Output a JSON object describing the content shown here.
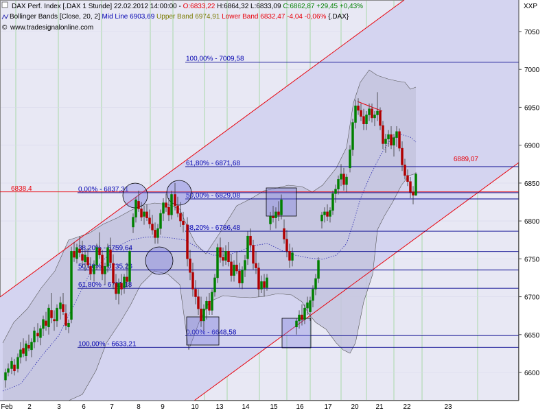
{
  "header": {
    "line1_prefix": "DAX Perf. Index [.DAX  1 Stunde] 22.02.2012 14:00:00 - ",
    "line1_open": "O:6833,22",
    "line1_hl": " H:6864,32 L:6833,09 ",
    "line1_close": "C:6862,87 +29,45 +0,43%",
    "line2_prefix": "Bollinger Bands [Close, 20, 2] ",
    "line2_mid": "Mid Line 6903,69",
    "line2_upper": " Upper Band 6974,91",
    "line2_lower": " Lower Band 6832,47 -4,04 -0,06%",
    "line2_symbol": " {.DAX}",
    "copyright": "www.tradesignalonline.com"
  },
  "axis": {
    "unit_label": "XXP"
  },
  "price_labels": {
    "left_level": "6838,4",
    "right_level": "6889,07"
  },
  "colors": {
    "background": "#e8e8f4",
    "channel_fill": "#d4d4f0",
    "band_fill": "#c4c4de",
    "channel_line": "#e8000a",
    "fib_line": "#00008b",
    "candle_up": "#008000",
    "candle_down": "#b00000",
    "grid": "#a8d8a8",
    "header_red": "#e8000a",
    "header_green": "#008000",
    "header_blue": "#0000b0",
    "header_olive": "#7a7a00"
  },
  "chart_data": {
    "type": "candlestick",
    "y_axis": {
      "ticks": [
        6600,
        6650,
        6700,
        6750,
        6800,
        6850,
        6900,
        6950,
        7000,
        7050
      ],
      "tick_labels": [
        "6600",
        "6650",
        "6700",
        "6750",
        "6800",
        "6850",
        "6900",
        "6950",
        "7000",
        "7050"
      ],
      "ylim": [
        6555,
        7085
      ]
    },
    "x_axis": {
      "tick_labels": [
        "Feb",
        "2",
        "3",
        "6",
        "7",
        "8",
        "9",
        "10",
        "13",
        "14",
        "15",
        "16",
        "17",
        "20",
        "21",
        "22",
        "23"
      ]
    },
    "fib_levels": [
      {
        "label": "100,00% - 7009,58",
        "value": 7009.58
      },
      {
        "label": "61,80% - 6871,68",
        "value": 6871.68
      },
      {
        "label": "0,00% - 6837,31",
        "value": 6837.31
      },
      {
        "label": "50,00% - 6829,08",
        "value": 6829.08
      },
      {
        "label": "38,20% - 6786,48",
        "value": 6786.48
      },
      {
        "label": "38,20% - 6759,64",
        "value": 6759.64
      },
      {
        "label": "50,00% - 6735,26",
        "value": 6735.26
      },
      {
        "label": "61,80% - 6711,18",
        "value": 6711.18
      },
      {
        "label": "0,00% - 6648,58",
        "value": 6648.58
      },
      {
        "label": "100,00% - 6633,21",
        "value": 6633.21
      }
    ],
    "horizontal_level": 6838.4,
    "last_close_marker": 6889.07
  }
}
